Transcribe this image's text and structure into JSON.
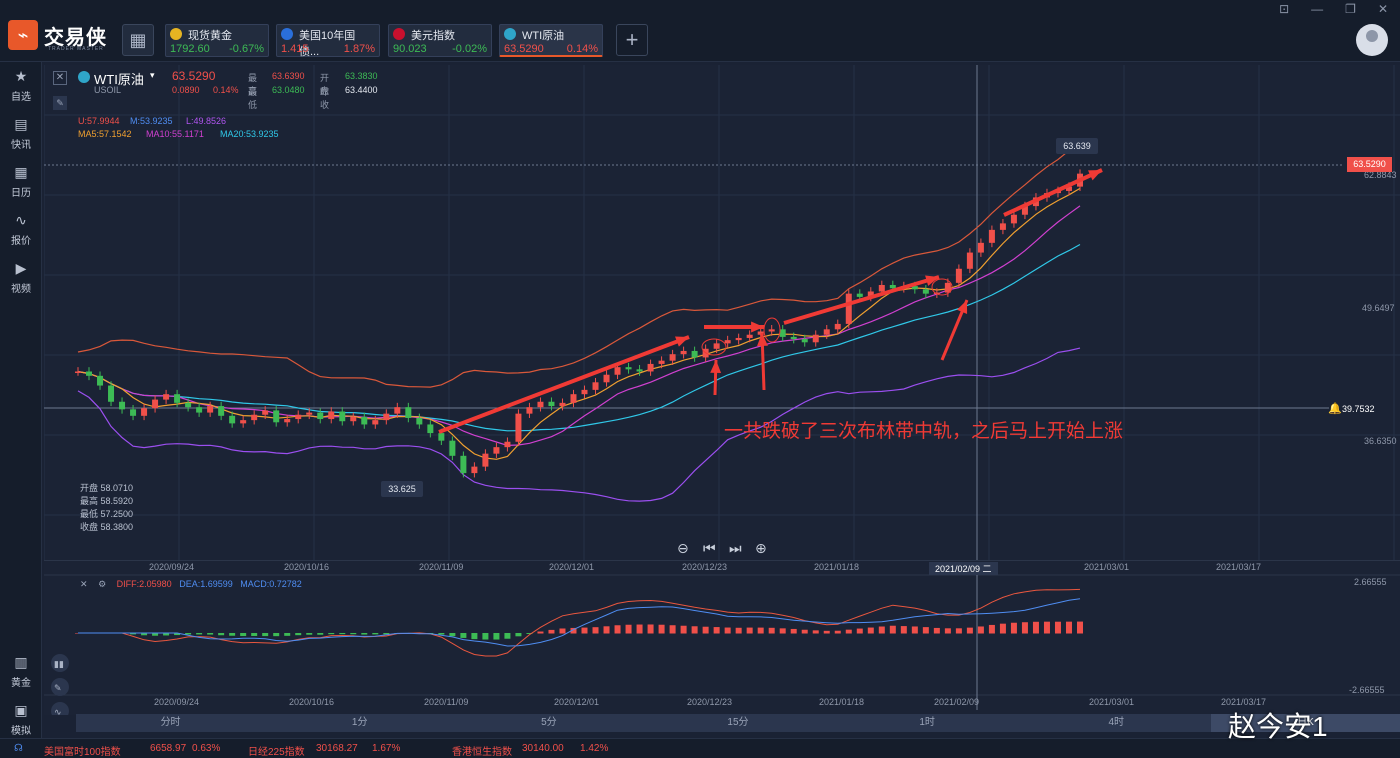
{
  "app": {
    "name": "交易侠",
    "subtitle": "TRADER MASTER"
  },
  "tickers": [
    {
      "name": "现货黄金",
      "price": "1792.60",
      "change": "-0.67%",
      "dir": "down",
      "icon": "gold-coin-icon",
      "color": "#e6b422"
    },
    {
      "name": "美国10年国债...",
      "price": "1.415",
      "change": "1.87%",
      "dir": "up",
      "icon": "bar-chart-icon",
      "color": "#2a6fdb"
    },
    {
      "name": "美元指数",
      "price": "90.023",
      "change": "-0.02%",
      "dir": "down",
      "icon": "us-flag-icon",
      "color": "#c8102e"
    },
    {
      "name": "WTI原油",
      "price": "63.5290",
      "change": "0.14%",
      "dir": "up",
      "icon": "oil-icon",
      "color": "#2fa5c9"
    }
  ],
  "sidebar": [
    {
      "label": "自选",
      "icon": "star-icon"
    },
    {
      "label": "快讯",
      "icon": "news-icon"
    },
    {
      "label": "日历",
      "icon": "calendar-icon"
    },
    {
      "label": "报价",
      "icon": "quote-icon"
    },
    {
      "label": "视频",
      "icon": "video-icon"
    },
    {
      "label": "黄金",
      "icon": "gold-icon"
    },
    {
      "label": "模拟",
      "icon": "wallet-icon"
    }
  ],
  "symbol": {
    "name": "WTI原油",
    "code": "USOIL",
    "last": "63.5290",
    "chg": "0.0890",
    "pct": "0.14%",
    "high_label": "最高",
    "high": "63.6390",
    "open_label": "开盘",
    "open": "63.3830",
    "low_label": "最低",
    "low": "63.0480",
    "prev_label": "昨收",
    "prev": "63.4400"
  },
  "indicators": {
    "boll": {
      "u": "U:57.9944",
      "m": "M:53.9235",
      "l": "L:49.8526"
    },
    "ma": {
      "ma5": "MA5:57.1542",
      "ma10": "MA10:55.1171",
      "ma20": "MA20:53.9235"
    }
  },
  "price_axis": [
    "62.8843",
    "49.6497",
    "39.7532",
    "36.6350"
  ],
  "price_tag": "63.5290",
  "marks": {
    "high": "63.639",
    "low": "33.625"
  },
  "ohlc_box": {
    "open": "开盘 58.0710",
    "high": "最高 58.5920",
    "low": "最低 57.2500",
    "close": "收盘 58.3800"
  },
  "annotation": "一共跌破了三次布林带中轨，之后马上开始上涨",
  "x_axis": [
    "2020/09/24",
    "2020/10/16",
    "2020/11/09",
    "2020/12/01",
    "2020/12/23",
    "2021/01/18",
    "2021/02/09 二",
    "2021/03/01",
    "2021/03/17"
  ],
  "macd": {
    "diff": "DIFF:2.05980",
    "dea": "DEA:1.69599",
    "macd": "MACD:0.72782",
    "axis_top": "2.66555",
    "axis_bottom": "-2.66555"
  },
  "macd_x_axis": [
    "2020/09/24",
    "2020/10/16",
    "2020/11/09",
    "2020/12/01",
    "2020/12/23",
    "2021/01/18",
    "2021/02/09",
    "2021/03/01",
    "2021/03/17"
  ],
  "timeframes": [
    "分时",
    "1分",
    "5分",
    "15分",
    "1时",
    "4时",
    "日K"
  ],
  "statusbar": [
    {
      "name": "美国富时100指数",
      "value": "6658.97",
      "pct": "0.63%"
    },
    {
      "name": "日经225指数",
      "value": "30168.27",
      "pct": "1.67%"
    },
    {
      "name": "香港恒生指数",
      "value": "30140.00",
      "pct": "1.42%"
    }
  ],
  "watermark": "赵今安1",
  "chart_data": {
    "type": "candlestick",
    "title": "WTI原油",
    "ylim": [
      31,
      68
    ],
    "closes": [
      45.2,
      44.8,
      43.9,
      42.4,
      41.7,
      41.1,
      41.8,
      42.6,
      43.1,
      42.3,
      41.9,
      41.4,
      42.0,
      41.1,
      40.4,
      40.7,
      41.2,
      41.6,
      40.5,
      40.8,
      41.2,
      41.4,
      40.8,
      41.5,
      40.6,
      41.0,
      40.3,
      40.7,
      41.3,
      41.9,
      40.9,
      40.3,
      39.5,
      38.8,
      37.4,
      35.8,
      36.4,
      37.6,
      38.2,
      38.7,
      41.3,
      41.9,
      42.4,
      42.0,
      42.3,
      43.1,
      43.5,
      44.2,
      44.9,
      45.6,
      45.4,
      45.2,
      45.9,
      46.2,
      46.8,
      47.1,
      46.5,
      47.3,
      47.8,
      48.1,
      48.3,
      48.6,
      48.9,
      49.1,
      48.4,
      48.2,
      47.9,
      48.6,
      49.1,
      49.6,
      52.4,
      52.1,
      52.6,
      53.2,
      52.9,
      53.1,
      52.8,
      52.4,
      52.5,
      53.4,
      54.7,
      56.2,
      57.1,
      58.3,
      58.9,
      59.7,
      60.5,
      61.3,
      61.7,
      61.9,
      62.3,
      63.5
    ]
  }
}
